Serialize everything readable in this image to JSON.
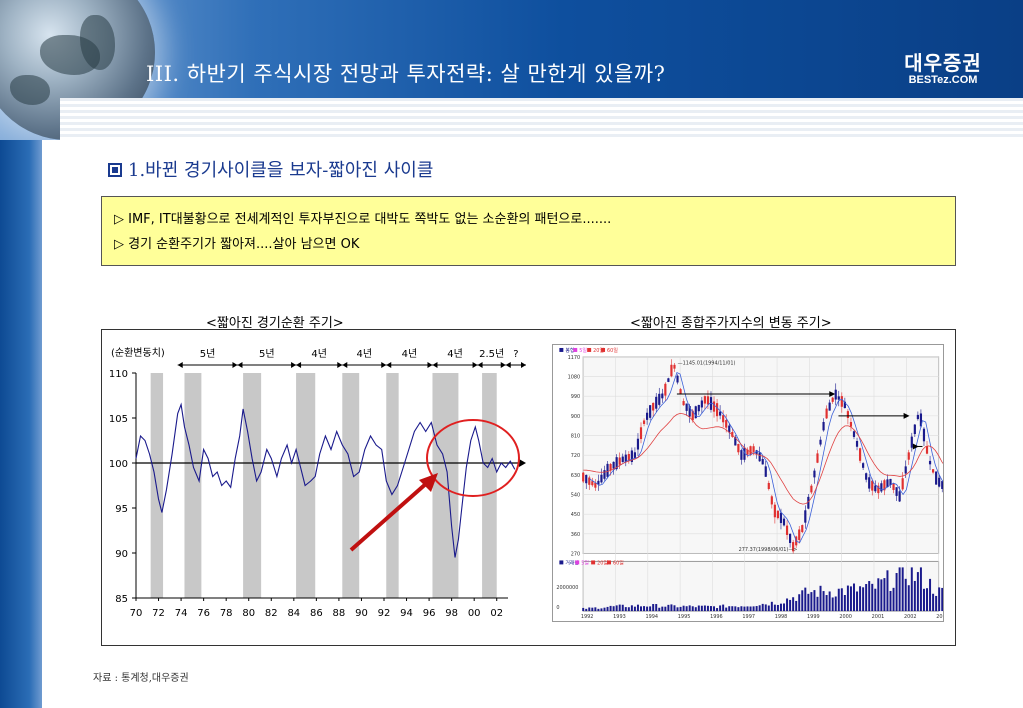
{
  "header": {
    "title": "III. 하반기 주식시장 전망과 투자전략: 살 만한게 있을까?",
    "logo_brand": "대우증권",
    "logo_sub": "BESTez.COM"
  },
  "section": {
    "heading": "1.바뀐 경기사이클을 보자-짧아진 사이클"
  },
  "callout": {
    "lines": [
      "▷ IMF, IT대불황으로 전세계적인 투자부진으로 대박도 쪽박도 없는 소순환의 패턴으로.......",
      "▷ 경기 순환주기가 짧아져....살아 남으면  OK"
    ]
  },
  "captions": {
    "left": "<짧아진 경기순환 주기>",
    "right": "<짧아진 종합주가지수의 변동 주기>"
  },
  "source_note": "자료 : 통계청,대우증권",
  "colors": {
    "header_blue": "#0e4f9e",
    "callout_bg": "#ffff99",
    "recession_band": "#c8c8c8",
    "cycle_line": "#1a1a8c",
    "highlight_circle": "#e02020",
    "arrow_red": "#c01010",
    "candle_up": "#e03030",
    "candle_down": "#1a1a8c",
    "ma_blue": "#3a5fd8",
    "ma_red": "#e04040"
  },
  "chart_data": [
    {
      "type": "line",
      "title": "<짧아진 경기순환 주기>",
      "ylabel": "(순환변동치)",
      "ylim": [
        85,
        110
      ],
      "yticks": [
        85,
        90,
        95,
        100,
        105,
        110
      ],
      "xlim": [
        1970,
        2003
      ],
      "xticks": [
        "70",
        "72",
        "74",
        "76",
        "78",
        "80",
        "82",
        "84",
        "86",
        "88",
        "90",
        "92",
        "94",
        "96",
        "98",
        "00",
        "02"
      ],
      "baseline": 100,
      "cycle_labels": [
        "5년",
        "5년",
        "4년",
        "4년",
        "4년",
        "4년",
        "2.5년",
        "?"
      ],
      "cycle_boundaries": [
        1973.7,
        1979.0,
        1984.2,
        1988.3,
        1992.2,
        1996.3,
        2000.3,
        2002.8,
        2005.0
      ],
      "recession_bands": [
        [
          1971.3,
          1972.4
        ],
        [
          1974.3,
          1975.8
        ],
        [
          1979.5,
          1981.1
        ],
        [
          1984.2,
          1985.9
        ],
        [
          1988.3,
          1989.8
        ],
        [
          1992.2,
          1993.3
        ],
        [
          1996.3,
          1998.6
        ],
        [
          2000.7,
          2002.0
        ]
      ],
      "series": [
        {
          "values": [
            [
              1970.0,
              100.5
            ],
            [
              1970.4,
              103.0
            ],
            [
              1970.8,
              102.5
            ],
            [
              1971.2,
              101.0
            ],
            [
              1971.6,
              99.0
            ],
            [
              1972.0,
              96.0
            ],
            [
              1972.3,
              94.5
            ],
            [
              1972.7,
              97.0
            ],
            [
              1973.2,
              101.0
            ],
            [
              1973.7,
              105.5
            ],
            [
              1974.0,
              106.5
            ],
            [
              1974.3,
              104.0
            ],
            [
              1974.7,
              102.0
            ],
            [
              1975.1,
              99.5
            ],
            [
              1975.6,
              98.0
            ],
            [
              1976.0,
              101.5
            ],
            [
              1976.4,
              100.5
            ],
            [
              1976.8,
              98.5
            ],
            [
              1977.2,
              99.0
            ],
            [
              1977.6,
              97.5
            ],
            [
              1978.0,
              98.0
            ],
            [
              1978.4,
              97.3
            ],
            [
              1978.8,
              100.5
            ],
            [
              1979.2,
              103.0
            ],
            [
              1979.5,
              106.0
            ],
            [
              1979.9,
              103.5
            ],
            [
              1980.3,
              100.5
            ],
            [
              1980.7,
              98.0
            ],
            [
              1981.1,
              99.0
            ],
            [
              1981.6,
              101.5
            ],
            [
              1982.0,
              100.5
            ],
            [
              1982.5,
              98.5
            ],
            [
              1982.9,
              100.5
            ],
            [
              1983.4,
              102.0
            ],
            [
              1983.8,
              100.0
            ],
            [
              1984.2,
              101.5
            ],
            [
              1984.6,
              99.5
            ],
            [
              1985.0,
              97.5
            ],
            [
              1985.5,
              98.0
            ],
            [
              1985.9,
              98.5
            ],
            [
              1986.3,
              101.0
            ],
            [
              1986.8,
              103.0
            ],
            [
              1987.3,
              101.5
            ],
            [
              1987.8,
              103.5
            ],
            [
              1988.3,
              102.0
            ],
            [
              1988.8,
              101.0
            ],
            [
              1989.3,
              98.5
            ],
            [
              1989.8,
              99.0
            ],
            [
              1990.3,
              101.5
            ],
            [
              1990.8,
              103.0
            ],
            [
              1991.3,
              102.0
            ],
            [
              1991.8,
              101.5
            ],
            [
              1992.2,
              98.0
            ],
            [
              1992.7,
              96.5
            ],
            [
              1993.2,
              97.5
            ],
            [
              1993.7,
              99.5
            ],
            [
              1994.2,
              101.5
            ],
            [
              1994.7,
              103.5
            ],
            [
              1995.2,
              104.5
            ],
            [
              1995.7,
              103.5
            ],
            [
              1996.2,
              104.5
            ],
            [
              1996.7,
              102.0
            ],
            [
              1997.2,
              101.0
            ],
            [
              1997.6,
              99.0
            ],
            [
              1998.0,
              93.0
            ],
            [
              1998.3,
              89.5
            ],
            [
              1998.6,
              91.5
            ],
            [
              1998.9,
              95.0
            ],
            [
              1999.3,
              99.5
            ],
            [
              1999.7,
              102.5
            ],
            [
              2000.1,
              104.0
            ],
            [
              2000.4,
              102.5
            ],
            [
              2000.8,
              100.0
            ],
            [
              2001.2,
              99.5
            ],
            [
              2001.6,
              100.5
            ],
            [
              2002.0,
              99.0
            ],
            [
              2002.4,
              100.0
            ],
            [
              2002.8,
              99.5
            ],
            [
              2003.2,
              100.2
            ],
            [
              2003.6,
              99.3
            ]
          ]
        }
      ]
    },
    {
      "type": "line",
      "title": "<짧아진 종합주가지수의 변동 주기>",
      "ylim": [
        270,
        1170
      ],
      "yticks": [
        270,
        360,
        450,
        540,
        630,
        720,
        810,
        900,
        990,
        1080,
        1170
      ],
      "xlim": [
        1992,
        2003
      ],
      "xticks": [
        "1992",
        "1993",
        "1994",
        "1995",
        "1996",
        "1997",
        "1998",
        "1999",
        "2000",
        "2001",
        "2002",
        "2003"
      ],
      "legend_price": [
        "봉형",
        "5일",
        "20일",
        "60일"
      ],
      "legend_volume": [
        "거래량",
        "5일",
        "20일",
        "60일"
      ],
      "annotations": [
        "1145.01(1994/11/01)",
        "277.37(1998/06/01)"
      ],
      "volume_tick": "2000000",
      "volume_zero": "0",
      "series": [
        {
          "name": "종합주가지수",
          "values": [
            [
              1992.0,
              620
            ],
            [
              1992.4,
              580
            ],
            [
              1992.8,
              660
            ],
            [
              1993.2,
              700
            ],
            [
              1993.6,
              720
            ],
            [
              1993.9,
              880
            ],
            [
              1994.2,
              950
            ],
            [
              1994.5,
              1000
            ],
            [
              1994.8,
              1140
            ],
            [
              1995.1,
              960
            ],
            [
              1995.4,
              900
            ],
            [
              1995.8,
              980
            ],
            [
              1996.2,
              920
            ],
            [
              1996.6,
              820
            ],
            [
              1996.9,
              720
            ],
            [
              1997.3,
              750
            ],
            [
              1997.6,
              680
            ],
            [
              1997.9,
              470
            ],
            [
              1998.2,
              420
            ],
            [
              1998.5,
              300
            ],
            [
              1998.8,
              390
            ],
            [
              1999.1,
              590
            ],
            [
              1999.5,
              900
            ],
            [
              1999.8,
              1000
            ],
            [
              2000.1,
              950
            ],
            [
              2000.5,
              760
            ],
            [
              2000.8,
              600
            ],
            [
              2001.1,
              560
            ],
            [
              2001.5,
              600
            ],
            [
              2001.8,
              530
            ],
            [
              2002.2,
              800
            ],
            [
              2002.4,
              920
            ],
            [
              2002.7,
              700
            ],
            [
              2002.9,
              620
            ],
            [
              2003.1,
              580
            ],
            [
              2003.3,
              640
            ]
          ]
        },
        {
          "name": "거래량",
          "values": [
            [
              1992.0,
              150000
            ],
            [
              1993.0,
              300000
            ],
            [
              1994.0,
              350000
            ],
            [
              1995.0,
              300000
            ],
            [
              1996.0,
              280000
            ],
            [
              1997.0,
              350000
            ],
            [
              1998.0,
              550000
            ],
            [
              1999.0,
              1200000
            ],
            [
              2000.0,
              1300000
            ],
            [
              2001.0,
              1500000
            ],
            [
              2002.0,
              2500000
            ],
            [
              2002.5,
              2100000
            ],
            [
              2003.0,
              1200000
            ]
          ]
        }
      ]
    }
  ]
}
